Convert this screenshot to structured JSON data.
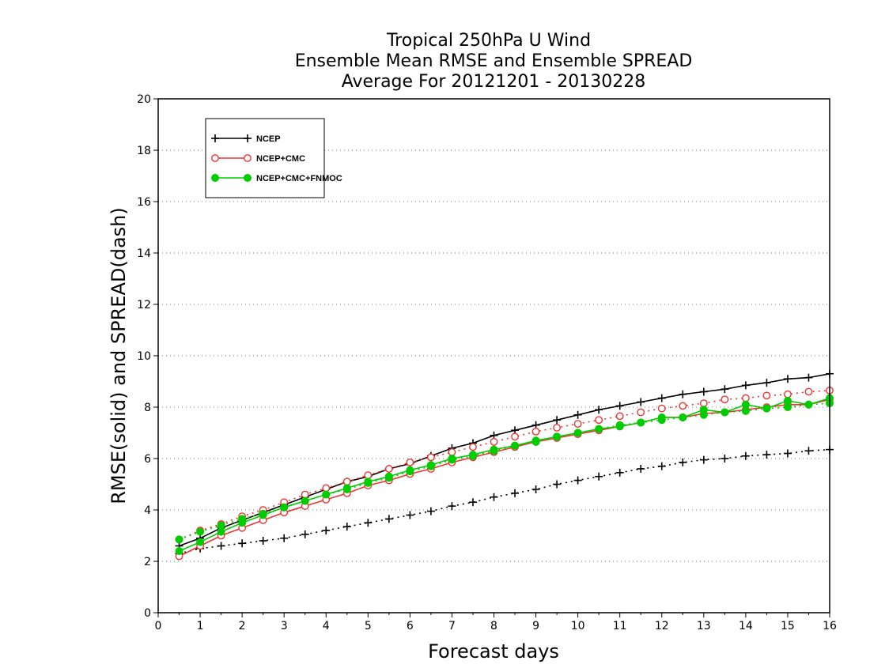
{
  "chart_data": {
    "type": "line",
    "title": [
      "Tropical 250hPa U Wind",
      "Ensemble Mean RMSE and Ensemble SPREAD",
      "Average For 20121201 - 20130228"
    ],
    "xlabel": "Forecast days",
    "ylabel": "RMSE(solid) and SPREAD(dash)",
    "xlim": [
      0,
      16
    ],
    "ylim": [
      0,
      20
    ],
    "xticks": [
      "0",
      "1",
      "2",
      "3",
      "4",
      "5",
      "6",
      "7",
      "8",
      "9",
      "10",
      "11",
      "12",
      "13",
      "14",
      "15",
      "16"
    ],
    "yticks": [
      "0",
      "2",
      "4",
      "6",
      "8",
      "10",
      "12",
      "14",
      "16",
      "18",
      "20"
    ],
    "grid": "horizontal dotted",
    "legend_position": "top-left",
    "x": [
      0.5,
      1,
      1.5,
      2,
      2.5,
      3,
      3.5,
      4,
      4.5,
      5,
      5.5,
      6,
      6.5,
      7,
      7.5,
      8,
      8.5,
      9,
      9.5,
      10,
      10.5,
      11,
      11.5,
      12,
      12.5,
      13,
      13.5,
      14,
      14.5,
      15,
      15.5,
      16
    ],
    "series": [
      {
        "name": "NCEP",
        "color": "#000000",
        "marker": "plus",
        "rmse": [
          2.6,
          2.9,
          3.3,
          3.6,
          3.9,
          4.2,
          4.5,
          4.8,
          5.1,
          5.3,
          5.6,
          5.8,
          6.1,
          6.4,
          6.6,
          6.9,
          7.1,
          7.3,
          7.5,
          7.7,
          7.9,
          8.05,
          8.2,
          8.35,
          8.5,
          8.6,
          8.7,
          8.85,
          8.95,
          9.1,
          9.15,
          9.3
        ],
        "spread": [
          2.3,
          2.5,
          2.6,
          2.7,
          2.8,
          2.9,
          3.05,
          3.2,
          3.35,
          3.5,
          3.65,
          3.8,
          3.95,
          4.15,
          4.3,
          4.5,
          4.65,
          4.8,
          5.0,
          5.15,
          5.3,
          5.45,
          5.6,
          5.7,
          5.85,
          5.95,
          6.0,
          6.1,
          6.15,
          6.2,
          6.3,
          6.35
        ]
      },
      {
        "name": "NCEP+CMC",
        "color": "#ee3333",
        "marker": "open-circle",
        "rmse": [
          2.2,
          2.6,
          3.0,
          3.3,
          3.6,
          3.9,
          4.15,
          4.4,
          4.65,
          4.95,
          5.15,
          5.4,
          5.6,
          5.85,
          6.05,
          6.25,
          6.45,
          6.65,
          6.8,
          6.95,
          7.1,
          7.25,
          7.4,
          7.6,
          7.6,
          7.75,
          7.8,
          7.9,
          8.0,
          8.1,
          8.1,
          8.3
        ],
        "spread": [
          2.85,
          3.2,
          3.45,
          3.75,
          4.0,
          4.3,
          4.6,
          4.85,
          5.1,
          5.35,
          5.6,
          5.85,
          6.05,
          6.25,
          6.45,
          6.65,
          6.85,
          7.05,
          7.2,
          7.35,
          7.5,
          7.65,
          7.8,
          7.95,
          8.05,
          8.15,
          8.3,
          8.35,
          8.45,
          8.5,
          8.6,
          8.65
        ]
      },
      {
        "name": "NCEP+CMC+FNMOC",
        "color": "#00cc00",
        "marker": "filled-circle",
        "rmse": [
          2.4,
          2.75,
          3.15,
          3.5,
          3.8,
          4.1,
          4.35,
          4.6,
          4.85,
          5.1,
          5.3,
          5.55,
          5.75,
          6.0,
          6.15,
          6.35,
          6.5,
          6.7,
          6.85,
          7.0,
          7.15,
          7.25,
          7.4,
          7.6,
          7.6,
          7.9,
          7.8,
          8.1,
          7.95,
          8.25,
          8.1,
          8.35
        ],
        "spread": [
          2.85,
          3.15,
          3.4,
          3.65,
          3.85,
          4.1,
          4.35,
          4.6,
          4.8,
          5.05,
          5.25,
          5.5,
          5.7,
          5.95,
          6.1,
          6.3,
          6.5,
          6.65,
          6.85,
          7.0,
          7.15,
          7.3,
          7.4,
          7.5,
          7.6,
          7.7,
          7.8,
          7.85,
          7.95,
          8.0,
          8.1,
          8.15
        ]
      }
    ]
  }
}
